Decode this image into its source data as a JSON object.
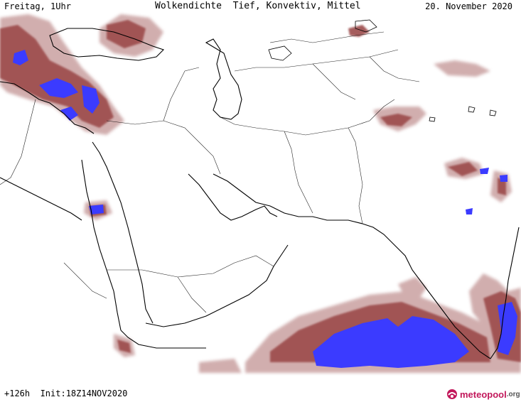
{
  "header": {
    "run_info": "Freitag, 1Uhr",
    "title": "Wolkendichte  Tief, Konvektiv, Mittel",
    "valid_date": "20. November 2020"
  },
  "footer": {
    "run_info": "+126h  Init:18Z14NOV2020"
  },
  "logo": {
    "word": "meteopool",
    "tld": ".org"
  },
  "colors": {
    "background": "#ffffff",
    "coastline": "#000000",
    "border": "#000000",
    "cloud_light": "#c9a0a0",
    "cloud_medium": "#9c4c4c",
    "cloud_dense": "#7a2a2a",
    "cloud_convective": "#3b3bff",
    "logo_accent": "#c2185b"
  }
}
